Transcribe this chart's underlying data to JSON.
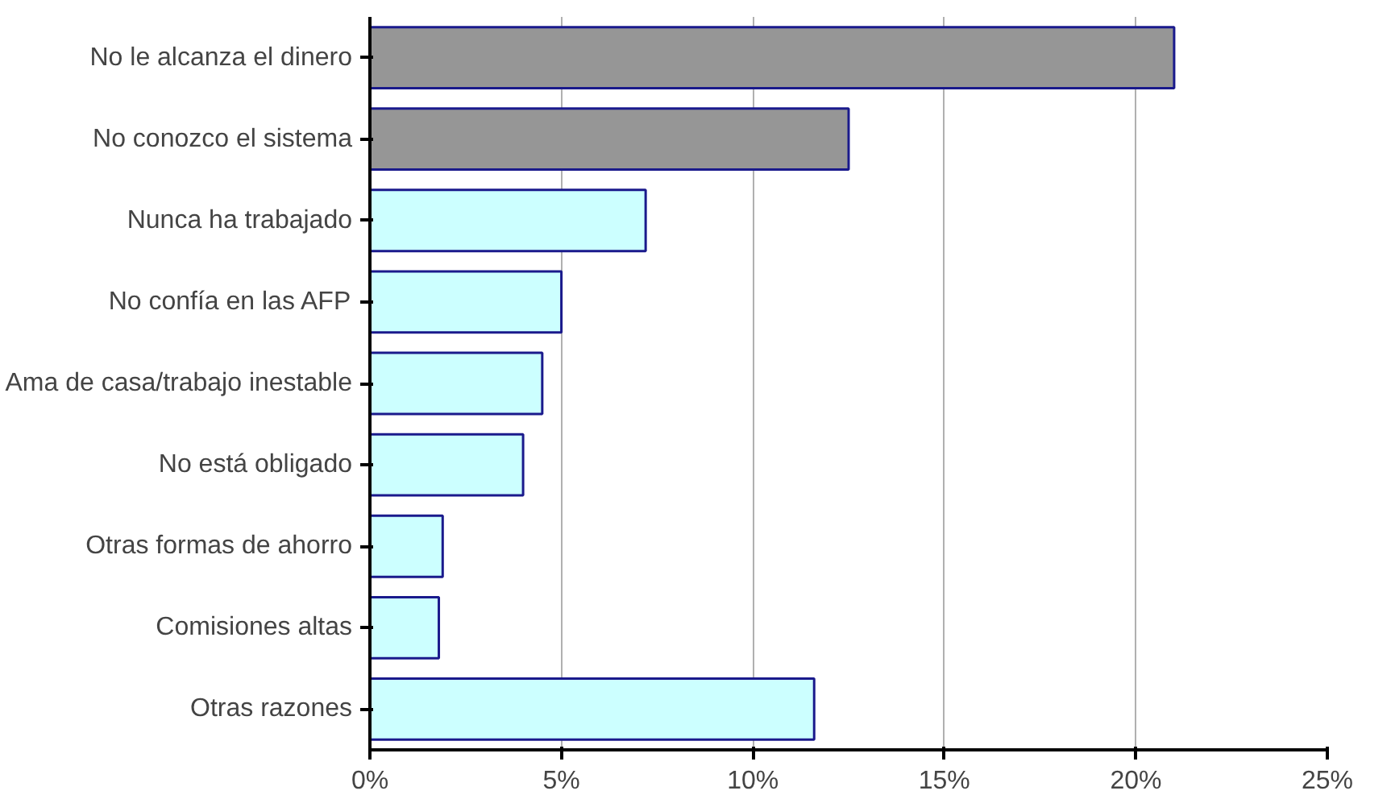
{
  "chart_data": {
    "type": "bar",
    "orientation": "horizontal",
    "categories": [
      "No le alcanza el dinero",
      "No conozco el sistema",
      "Nunca ha trabajado",
      "No confía en las AFP",
      "Ama de casa/trabajo inestable",
      "No está obligado",
      "Otras formas de ahorro",
      "Comisiones altas",
      "Otras razones"
    ],
    "values": [
      21.0,
      12.5,
      7.2,
      5.0,
      4.5,
      4.0,
      1.9,
      1.8,
      11.6
    ],
    "colors": [
      "#969696",
      "#969696",
      "#ccffff",
      "#ccffff",
      "#ccffff",
      "#ccffff",
      "#ccffff",
      "#ccffff",
      "#ccffff"
    ],
    "xlim": [
      0,
      25
    ],
    "xticks": [
      {
        "value": 0,
        "label": "0%"
      },
      {
        "value": 5,
        "label": "5%"
      },
      {
        "value": 10,
        "label": "10%"
      },
      {
        "value": 15,
        "label": "15%"
      },
      {
        "value": 20,
        "label": "20%"
      },
      {
        "value": 25,
        "label": "25%"
      }
    ],
    "grid": "x"
  }
}
